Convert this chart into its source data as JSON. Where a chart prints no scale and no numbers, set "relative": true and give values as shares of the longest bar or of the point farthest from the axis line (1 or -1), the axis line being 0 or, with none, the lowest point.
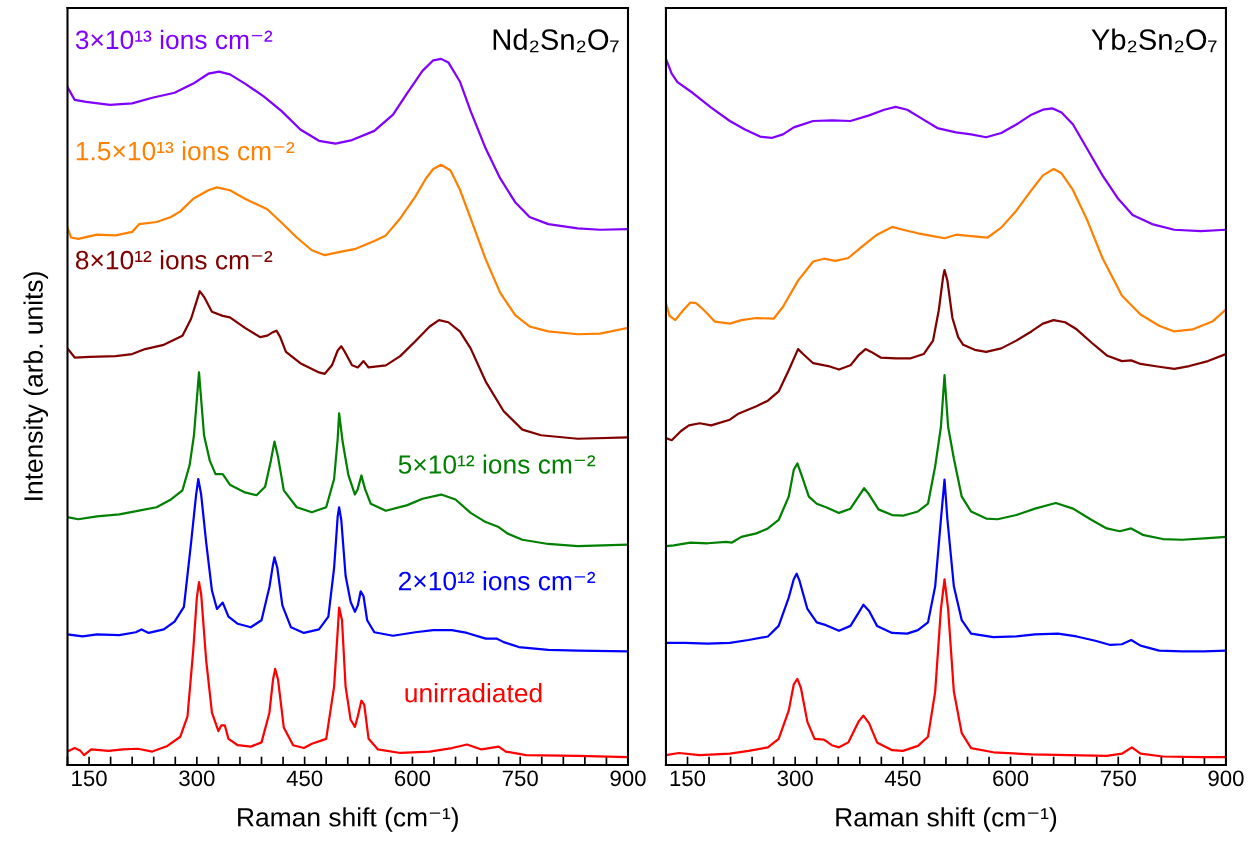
{
  "chart_data": [
    {
      "type": "line",
      "title": "Nd₂Sn₂O₇",
      "xlabel": "Raman shift (cm⁻¹)",
      "ylabel": "Intensity (arb. units)",
      "relative": true,
      "legend": false,
      "tick_labels": "x",
      "marker": "none",
      "line_style": "solid",
      "xlim": [
        120,
        900
      ],
      "xticks": [
        {
          "value": 120,
          "label": null
        },
        150,
        {
          "value": 180,
          "label": null
        },
        {
          "value": 210,
          "label": null
        },
        {
          "value": 240,
          "label": null
        },
        {
          "value": 270,
          "label": null
        },
        300,
        {
          "value": 330,
          "label": null
        },
        {
          "value": 360,
          "label": null
        },
        {
          "value": 390,
          "label": null
        },
        {
          "value": 420,
          "label": null
        },
        450,
        {
          "value": 480,
          "label": null
        },
        {
          "value": 510,
          "label": null
        },
        {
          "value": 540,
          "label": null
        },
        {
          "value": 570,
          "label": null
        },
        600,
        {
          "value": 630,
          "label": null
        },
        {
          "value": 660,
          "label": null
        },
        {
          "value": 690,
          "label": null
        },
        {
          "value": 720,
          "label": null
        },
        750,
        {
          "value": 780,
          "label": null
        },
        {
          "value": 810,
          "label": null
        },
        {
          "value": 840,
          "label": null
        },
        {
          "value": 870,
          "label": null
        },
        900
      ],
      "series": [
        {
          "name": "3×10¹³ ions cm⁻²",
          "color": "#8000ff",
          "x": [
            120,
            130,
            146,
            179,
            210,
            238,
            269,
            295,
            316,
            331,
            346,
            367,
            393,
            418,
            444,
            470,
            493,
            516,
            547,
            573,
            593,
            614,
            629,
            640,
            650,
            666,
            681,
            702,
            722,
            743,
            763,
            789,
            830,
            861,
            900
          ],
          "values": [
            0.96,
            0.942,
            0.939,
            0.935,
            0.937,
            0.945,
            0.952,
            0.965,
            0.979,
            0.982,
            0.978,
            0.965,
            0.947,
            0.926,
            0.9,
            0.884,
            0.88,
            0.885,
            0.898,
            0.921,
            0.952,
            0.983,
            0.998,
            1.0,
            0.995,
            0.968,
            0.926,
            0.873,
            0.831,
            0.797,
            0.776,
            0.766,
            0.76,
            0.758,
            0.759
          ]
        },
        {
          "name": "1.5×10¹³ ions cm⁻²",
          "color": "#ff8000",
          "x": [
            120,
            125,
            135,
            161,
            187,
            210,
            220,
            244,
            264,
            277,
            295,
            316,
            328,
            346,
            367,
            398,
            418,
            439,
            460,
            478,
            501,
            521,
            547,
            563,
            583,
            604,
            619,
            629,
            640,
            653,
            666,
            681,
            702,
            722,
            743,
            763,
            789,
            830,
            861,
            900
          ],
          "values": [
            0.761,
            0.747,
            0.745,
            0.751,
            0.75,
            0.755,
            0.766,
            0.769,
            0.776,
            0.784,
            0.802,
            0.814,
            0.818,
            0.814,
            0.802,
            0.787,
            0.768,
            0.747,
            0.729,
            0.722,
            0.727,
            0.731,
            0.742,
            0.75,
            0.774,
            0.805,
            0.831,
            0.844,
            0.85,
            0.842,
            0.815,
            0.774,
            0.716,
            0.669,
            0.637,
            0.621,
            0.614,
            0.61,
            0.611,
            0.619
          ]
        },
        {
          "name": "8×10¹² ions cm⁻²",
          "color": "#800000",
          "x": [
            120,
            130,
            151,
            187,
            210,
            228,
            254,
            280,
            292,
            300,
            304,
            310,
            321,
            336,
            346,
            367,
            388,
            398,
            406,
            411,
            416,
            424,
            444,
            470,
            478,
            488,
            496,
            501,
            506,
            516,
            524,
            532,
            539,
            563,
            583,
            604,
            624,
            637,
            650,
            666,
            681,
            702,
            727,
            753,
            779,
            830,
            900
          ],
          "values": [
            0.59,
            0.577,
            0.578,
            0.579,
            0.582,
            0.589,
            0.595,
            0.608,
            0.632,
            0.658,
            0.671,
            0.663,
            0.642,
            0.636,
            0.634,
            0.619,
            0.606,
            0.608,
            0.613,
            0.615,
            0.606,
            0.585,
            0.569,
            0.556,
            0.554,
            0.566,
            0.587,
            0.593,
            0.585,
            0.566,
            0.563,
            0.572,
            0.563,
            0.566,
            0.579,
            0.6,
            0.621,
            0.63,
            0.627,
            0.614,
            0.59,
            0.543,
            0.501,
            0.475,
            0.467,
            0.462,
            0.464
          ]
        },
        {
          "name": "5×10¹² ions cm⁻²",
          "color": "#008000",
          "x": [
            120,
            135,
            161,
            192,
            223,
            244,
            264,
            280,
            290,
            296,
            303,
            310,
            318,
            326,
            336,
            346,
            367,
            383,
            395,
            403,
            408,
            413,
            421,
            439,
            460,
            480,
            491,
            496,
            498,
            503,
            511,
            520,
            524,
            529,
            534,
            542,
            563,
            593,
            614,
            640,
            660,
            681,
            702,
            720,
            732,
            753,
            789,
            830,
            900
          ],
          "values": [
            0.351,
            0.348,
            0.352,
            0.355,
            0.361,
            0.365,
            0.376,
            0.389,
            0.425,
            0.467,
            0.556,
            0.467,
            0.431,
            0.412,
            0.412,
            0.397,
            0.386,
            0.382,
            0.394,
            0.431,
            0.458,
            0.436,
            0.389,
            0.365,
            0.358,
            0.365,
            0.405,
            0.462,
            0.498,
            0.457,
            0.41,
            0.383,
            0.391,
            0.41,
            0.391,
            0.37,
            0.36,
            0.368,
            0.377,
            0.383,
            0.376,
            0.357,
            0.344,
            0.337,
            0.328,
            0.319,
            0.313,
            0.31,
            0.312
          ]
        },
        {
          "name": "2×10¹² ions cm⁻²",
          "color": "#0000ff",
          "x": [
            120,
            141,
            161,
            192,
            215,
            223,
            233,
            254,
            269,
            282,
            292,
            299,
            302,
            306,
            313,
            321,
            328,
            336,
            344,
            357,
            375,
            390,
            401,
            406,
            408,
            412,
            419,
            431,
            449,
            470,
            483,
            491,
            496,
            498,
            501,
            507,
            514,
            520,
            524,
            528,
            532,
            537,
            547,
            573,
            604,
            629,
            655,
            676,
            702,
            717,
            727,
            748,
            789,
            830,
            900
          ],
          "values": [
            0.185,
            0.182,
            0.185,
            0.184,
            0.188,
            0.192,
            0.187,
            0.192,
            0.203,
            0.224,
            0.315,
            0.383,
            0.405,
            0.383,
            0.315,
            0.247,
            0.221,
            0.23,
            0.21,
            0.2,
            0.195,
            0.205,
            0.252,
            0.284,
            0.294,
            0.279,
            0.226,
            0.195,
            0.187,
            0.192,
            0.21,
            0.279,
            0.352,
            0.365,
            0.347,
            0.268,
            0.231,
            0.217,
            0.226,
            0.246,
            0.239,
            0.205,
            0.188,
            0.183,
            0.188,
            0.191,
            0.191,
            0.187,
            0.179,
            0.179,
            0.174,
            0.167,
            0.163,
            0.162,
            0.161
          ]
        },
        {
          "name": "unirradiated",
          "color": "#ff0000",
          "x": [
            120,
            130,
            138,
            143,
            153,
            177,
            197,
            218,
            238,
            259,
            277,
            287,
            295,
            300,
            303,
            306,
            313,
            321,
            330,
            334,
            339,
            344,
            357,
            375,
            390,
            401,
            406,
            409,
            413,
            421,
            434,
            449,
            460,
            480,
            491,
            496,
            498,
            502,
            507,
            514,
            520,
            524,
            529,
            533,
            539,
            552,
            583,
            624,
            655,
            676,
            696,
            720,
            730,
            758,
            830,
            900
          ],
          "values": [
            0.019,
            0.024,
            0.02,
            0.014,
            0.022,
            0.02,
            0.022,
            0.023,
            0.019,
            0.027,
            0.04,
            0.069,
            0.163,
            0.237,
            0.259,
            0.242,
            0.148,
            0.074,
            0.048,
            0.056,
            0.056,
            0.037,
            0.028,
            0.026,
            0.032,
            0.074,
            0.121,
            0.136,
            0.121,
            0.053,
            0.028,
            0.024,
            0.03,
            0.037,
            0.111,
            0.19,
            0.223,
            0.205,
            0.111,
            0.064,
            0.054,
            0.069,
            0.091,
            0.085,
            0.037,
            0.022,
            0.017,
            0.019,
            0.024,
            0.029,
            0.022,
            0.026,
            0.019,
            0.014,
            0.013,
            0.011
          ]
        }
      ]
    },
    {
      "type": "line",
      "title": "Yb₂Sn₂O₇",
      "xlabel": "Raman shift (cm⁻¹)",
      "relative": true,
      "legend": false,
      "tick_labels": "x",
      "marker": "none",
      "line_style": "solid",
      "xlim": [
        120,
        900
      ],
      "xticks": [
        {
          "value": 120,
          "label": null
        },
        150,
        {
          "value": 180,
          "label": null
        },
        {
          "value": 210,
          "label": null
        },
        {
          "value": 240,
          "label": null
        },
        {
          "value": 270,
          "label": null
        },
        300,
        {
          "value": 330,
          "label": null
        },
        {
          "value": 360,
          "label": null
        },
        {
          "value": 390,
          "label": null
        },
        {
          "value": 420,
          "label": null
        },
        450,
        {
          "value": 480,
          "label": null
        },
        {
          "value": 510,
          "label": null
        },
        {
          "value": 540,
          "label": null
        },
        {
          "value": 570,
          "label": null
        },
        600,
        {
          "value": 630,
          "label": null
        },
        {
          "value": 660,
          "label": null
        },
        {
          "value": 690,
          "label": null
        },
        {
          "value": 720,
          "label": null
        },
        750,
        {
          "value": 780,
          "label": null
        },
        {
          "value": 810,
          "label": null
        },
        {
          "value": 840,
          "label": null
        },
        {
          "value": 870,
          "label": null
        },
        900
      ],
      "series": [
        {
          "color": "#8000ff",
          "x": [
            120,
            128,
            136,
            157,
            183,
            209,
            230,
            251,
            267,
            283,
            298,
            325,
            351,
            377,
            403,
            424,
            440,
            456,
            477,
            498,
            524,
            545,
            566,
            587,
            608,
            629,
            645,
            658,
            671,
            687,
            707,
            728,
            749,
            770,
            797,
            828,
            865,
            900
          ],
          "values": [
            1.0,
            0.979,
            0.967,
            0.952,
            0.931,
            0.912,
            0.9,
            0.89,
            0.888,
            0.893,
            0.903,
            0.912,
            0.913,
            0.912,
            0.92,
            0.928,
            0.932,
            0.928,
            0.915,
            0.902,
            0.896,
            0.893,
            0.889,
            0.895,
            0.907,
            0.921,
            0.928,
            0.93,
            0.924,
            0.907,
            0.872,
            0.835,
            0.803,
            0.779,
            0.766,
            0.758,
            0.756,
            0.758
          ]
        },
        {
          "color": "#ff8000",
          "x": [
            120,
            125,
            133,
            144,
            154,
            162,
            173,
            188,
            209,
            225,
            246,
            270,
            283,
            304,
            325,
            340,
            356,
            374,
            393,
            414,
            435,
            450,
            471,
            492,
            508,
            524,
            545,
            568,
            587,
            608,
            629,
            645,
            660,
            671,
            687,
            707,
            728,
            755,
            781,
            807,
            828,
            854,
            881,
            900
          ],
          "values": [
            0.654,
            0.636,
            0.63,
            0.644,
            0.655,
            0.654,
            0.644,
            0.628,
            0.625,
            0.63,
            0.633,
            0.632,
            0.649,
            0.686,
            0.713,
            0.717,
            0.714,
            0.718,
            0.734,
            0.751,
            0.762,
            0.758,
            0.753,
            0.749,
            0.746,
            0.751,
            0.749,
            0.747,
            0.761,
            0.785,
            0.814,
            0.835,
            0.844,
            0.838,
            0.814,
            0.771,
            0.718,
            0.665,
            0.638,
            0.622,
            0.614,
            0.617,
            0.628,
            0.645
          ]
        },
        {
          "color": "#800000",
          "x": [
            120,
            128,
            141,
            152,
            167,
            183,
            209,
            220,
            246,
            262,
            277,
            291,
            304,
            311,
            325,
            346,
            361,
            377,
            388,
            398,
            406,
            419,
            440,
            461,
            479,
            492,
            500,
            506,
            508,
            512,
            519,
            527,
            534,
            550,
            566,
            587,
            608,
            629,
            645,
            660,
            676,
            692,
            713,
            734,
            755,
            768,
            781,
            807,
            828,
            849,
            875,
            900
          ],
          "values": [
            0.463,
            0.46,
            0.473,
            0.481,
            0.484,
            0.481,
            0.489,
            0.497,
            0.508,
            0.516,
            0.529,
            0.559,
            0.589,
            0.582,
            0.569,
            0.565,
            0.56,
            0.566,
            0.58,
            0.589,
            0.585,
            0.577,
            0.576,
            0.576,
            0.582,
            0.601,
            0.644,
            0.691,
            0.701,
            0.686,
            0.633,
            0.606,
            0.595,
            0.588,
            0.585,
            0.59,
            0.601,
            0.614,
            0.625,
            0.63,
            0.627,
            0.617,
            0.598,
            0.58,
            0.572,
            0.573,
            0.568,
            0.564,
            0.561,
            0.565,
            0.572,
            0.582
          ]
        },
        {
          "color": "#008000",
          "x": [
            120,
            131,
            154,
            178,
            204,
            212,
            225,
            246,
            262,
            277,
            291,
            298,
            303,
            309,
            319,
            330,
            343,
            361,
            377,
            390,
            396,
            403,
            416,
            435,
            450,
            471,
            485,
            495,
            503,
            508,
            513,
            521,
            532,
            545,
            566,
            582,
            608,
            634,
            663,
            687,
            713,
            734,
            752,
            768,
            784,
            812,
            839,
            870,
            900
          ],
          "values": [
            0.31,
            0.311,
            0.315,
            0.314,
            0.316,
            0.315,
            0.323,
            0.328,
            0.335,
            0.347,
            0.38,
            0.418,
            0.427,
            0.41,
            0.38,
            0.37,
            0.365,
            0.357,
            0.363,
            0.383,
            0.392,
            0.383,
            0.362,
            0.354,
            0.353,
            0.359,
            0.37,
            0.423,
            0.479,
            0.552,
            0.479,
            0.434,
            0.38,
            0.359,
            0.349,
            0.348,
            0.354,
            0.363,
            0.371,
            0.363,
            0.347,
            0.335,
            0.331,
            0.335,
            0.326,
            0.32,
            0.319,
            0.321,
            0.323
          ]
        },
        {
          "color": "#0000ff",
          "x": [
            120,
            146,
            178,
            209,
            235,
            262,
            277,
            291,
            298,
            302,
            306,
            317,
            330,
            343,
            361,
            377,
            388,
            395,
            403,
            414,
            435,
            456,
            471,
            485,
            495,
            503,
            508,
            512,
            521,
            532,
            545,
            576,
            608,
            634,
            666,
            692,
            718,
            739,
            755,
            768,
            781,
            807,
            839,
            870,
            900
          ],
          "values": [
            0.173,
            0.173,
            0.172,
            0.173,
            0.177,
            0.182,
            0.197,
            0.237,
            0.263,
            0.271,
            0.261,
            0.221,
            0.202,
            0.198,
            0.19,
            0.197,
            0.215,
            0.227,
            0.218,
            0.197,
            0.187,
            0.186,
            0.191,
            0.202,
            0.253,
            0.348,
            0.404,
            0.348,
            0.253,
            0.205,
            0.186,
            0.181,
            0.182,
            0.185,
            0.186,
            0.182,
            0.176,
            0.17,
            0.171,
            0.177,
            0.169,
            0.162,
            0.161,
            0.161,
            0.162
          ]
        },
        {
          "color": "#ff0000",
          "x": [
            120,
            138,
            167,
            209,
            235,
            262,
            277,
            291,
            298,
            303,
            308,
            317,
            327,
            340,
            351,
            361,
            374,
            388,
            395,
            403,
            414,
            435,
            450,
            471,
            485,
            495,
            503,
            508,
            513,
            521,
            532,
            545,
            576,
            629,
            681,
            734,
            755,
            769,
            781,
            812,
            865,
            900
          ],
          "values": [
            0.014,
            0.017,
            0.014,
            0.016,
            0.02,
            0.025,
            0.037,
            0.077,
            0.114,
            0.122,
            0.109,
            0.061,
            0.037,
            0.036,
            0.028,
            0.025,
            0.032,
            0.061,
            0.07,
            0.059,
            0.032,
            0.021,
            0.02,
            0.027,
            0.04,
            0.104,
            0.221,
            0.263,
            0.221,
            0.104,
            0.045,
            0.024,
            0.018,
            0.015,
            0.014,
            0.013,
            0.016,
            0.025,
            0.016,
            0.012,
            0.011,
            0.011
          ]
        }
      ]
    }
  ]
}
